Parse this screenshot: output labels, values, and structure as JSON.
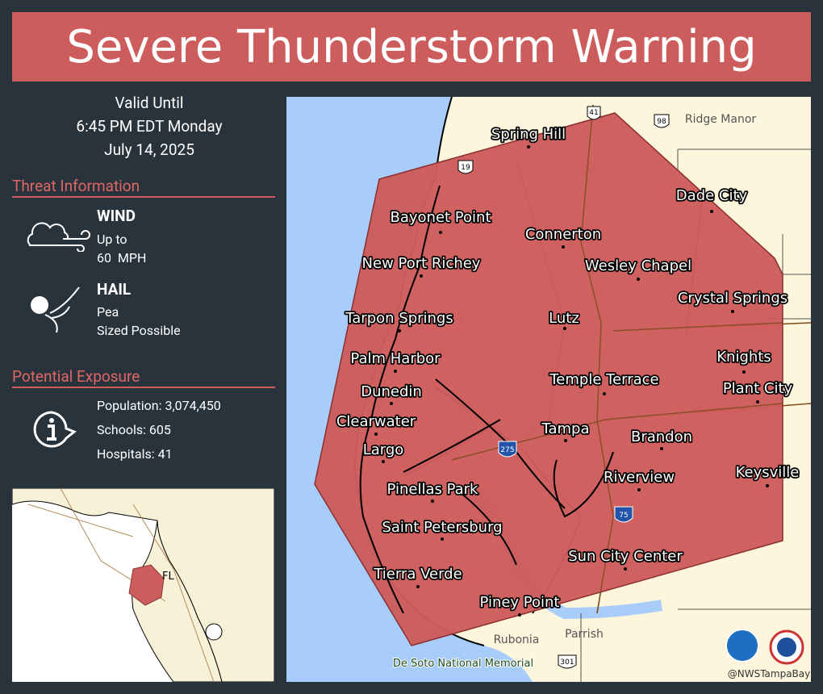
{
  "header": {
    "title": "Severe Thunderstorm Warning"
  },
  "valid": {
    "lines": [
      "Valid Until",
      "6:45 PM EDT Monday",
      "July 14, 2025"
    ]
  },
  "threat": {
    "heading": "Threat Information",
    "items": [
      {
        "label": "WIND",
        "lines": [
          "Up to",
          "60  MPH"
        ]
      },
      {
        "label": "HAIL",
        "lines": [
          "Pea",
          "Sized Possible"
        ]
      }
    ]
  },
  "exposure": {
    "heading": "Potential Exposure",
    "lines": [
      "Population: 3,074,450",
      "Schools: 605",
      "Hospitals: 41"
    ]
  },
  "inset": {
    "label": "FL"
  },
  "map": {
    "cities": [
      "Spring Hill",
      "Bayonet Point",
      "Connerton",
      "New Port Richey",
      "Wesley Chapel",
      "Dade City",
      "Crystal Springs",
      "Tarpon Springs",
      "Lutz",
      "Palm Harbor",
      "Knights",
      "Temple Terrace",
      "Plant City",
      "Dunedin",
      "Clearwater",
      "Tampa",
      "Brandon",
      "Largo",
      "Keysville",
      "Riverview",
      "Pinellas Park",
      "Saint Petersburg",
      "Sun City Center",
      "Tierra Verde",
      "Piney Point"
    ],
    "minor_labels": [
      "Ridge Manor",
      "Parrish",
      "Rubonia",
      "De Soto National Memorial"
    ],
    "road_shields": [
      "41",
      "98",
      "19",
      "275",
      "75",
      "301"
    ],
    "credit": "@NWSTampaBay"
  }
}
